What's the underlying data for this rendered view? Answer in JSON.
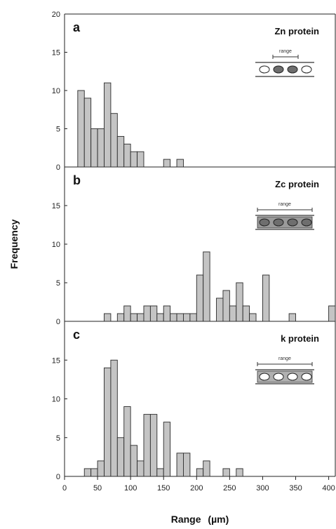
{
  "ylabel": "Frequency",
  "xlabel": "Range",
  "xlabel_unit": "(µm)",
  "x_ticks": [
    "0",
    "50",
    "100",
    "150",
    "200",
    "250",
    "300",
    "350",
    "400"
  ],
  "colors": {
    "bar_fill": "#c4c4c4",
    "bar_stroke": "#2a2a2a",
    "axis": "#222222",
    "cell_dark": "#6e6e6e",
    "cell_light": "#ffffff"
  },
  "chart_data": [
    {
      "type": "bar",
      "panel": "a",
      "title": "Zn protein",
      "inset_label": "range",
      "inset_cells": [
        "light",
        "dark",
        "dark",
        "light"
      ],
      "xlabel": "Range",
      "ylabel": "Frequency",
      "xlim": [
        0,
        410
      ],
      "ylim": [
        0,
        20
      ],
      "y_ticks": [
        "0",
        "5",
        "10",
        "15",
        "20"
      ],
      "bin_width": 10,
      "bins": [
        {
          "x": 20,
          "y": 10
        },
        {
          "x": 30,
          "y": 9
        },
        {
          "x": 40,
          "y": 5
        },
        {
          "x": 50,
          "y": 5
        },
        {
          "x": 60,
          "y": 11
        },
        {
          "x": 70,
          "y": 7
        },
        {
          "x": 80,
          "y": 4
        },
        {
          "x": 90,
          "y": 3
        },
        {
          "x": 100,
          "y": 2
        },
        {
          "x": 110,
          "y": 2
        },
        {
          "x": 150,
          "y": 1
        },
        {
          "x": 170,
          "y": 1
        }
      ]
    },
    {
      "type": "bar",
      "panel": "b",
      "title": "Zc protein",
      "inset_label": "range",
      "inset_cells": [
        "dark",
        "dark",
        "dark",
        "dark"
      ],
      "xlabel": "Range",
      "ylabel": "Frequency",
      "xlim": [
        0,
        410
      ],
      "ylim": [
        0,
        20
      ],
      "y_ticks": [
        "0",
        "5",
        "10",
        "15"
      ],
      "bin_width": 10,
      "bins": [
        {
          "x": 60,
          "y": 1
        },
        {
          "x": 80,
          "y": 1
        },
        {
          "x": 90,
          "y": 2
        },
        {
          "x": 100,
          "y": 1
        },
        {
          "x": 110,
          "y": 1
        },
        {
          "x": 120,
          "y": 2
        },
        {
          "x": 130,
          "y": 2
        },
        {
          "x": 140,
          "y": 1
        },
        {
          "x": 150,
          "y": 2
        },
        {
          "x": 160,
          "y": 1
        },
        {
          "x": 170,
          "y": 1
        },
        {
          "x": 180,
          "y": 1
        },
        {
          "x": 190,
          "y": 1
        },
        {
          "x": 200,
          "y": 6
        },
        {
          "x": 210,
          "y": 9
        },
        {
          "x": 230,
          "y": 3
        },
        {
          "x": 240,
          "y": 4
        },
        {
          "x": 250,
          "y": 2
        },
        {
          "x": 260,
          "y": 5
        },
        {
          "x": 270,
          "y": 2
        },
        {
          "x": 280,
          "y": 1
        },
        {
          "x": 300,
          "y": 6
        },
        {
          "x": 340,
          "y": 1
        },
        {
          "x": 400,
          "y": 2
        }
      ]
    },
    {
      "type": "bar",
      "panel": "c",
      "title": "k protein",
      "inset_label": "range",
      "inset_cells": [
        "light",
        "light",
        "light",
        "light"
      ],
      "xlabel": "Range",
      "ylabel": "Frequency",
      "xlim": [
        0,
        410
      ],
      "ylim": [
        0,
        20
      ],
      "y_ticks": [
        "0",
        "5",
        "10",
        "15"
      ],
      "bin_width": 10,
      "bins": [
        {
          "x": 30,
          "y": 1
        },
        {
          "x": 40,
          "y": 1
        },
        {
          "x": 50,
          "y": 2
        },
        {
          "x": 60,
          "y": 14
        },
        {
          "x": 70,
          "y": 15
        },
        {
          "x": 80,
          "y": 5
        },
        {
          "x": 90,
          "y": 9
        },
        {
          "x": 100,
          "y": 4
        },
        {
          "x": 110,
          "y": 2
        },
        {
          "x": 120,
          "y": 8
        },
        {
          "x": 130,
          "y": 8
        },
        {
          "x": 140,
          "y": 1
        },
        {
          "x": 150,
          "y": 7
        },
        {
          "x": 170,
          "y": 3
        },
        {
          "x": 180,
          "y": 3
        },
        {
          "x": 200,
          "y": 1
        },
        {
          "x": 210,
          "y": 2
        },
        {
          "x": 240,
          "y": 1
        },
        {
          "x": 260,
          "y": 1
        }
      ]
    }
  ]
}
